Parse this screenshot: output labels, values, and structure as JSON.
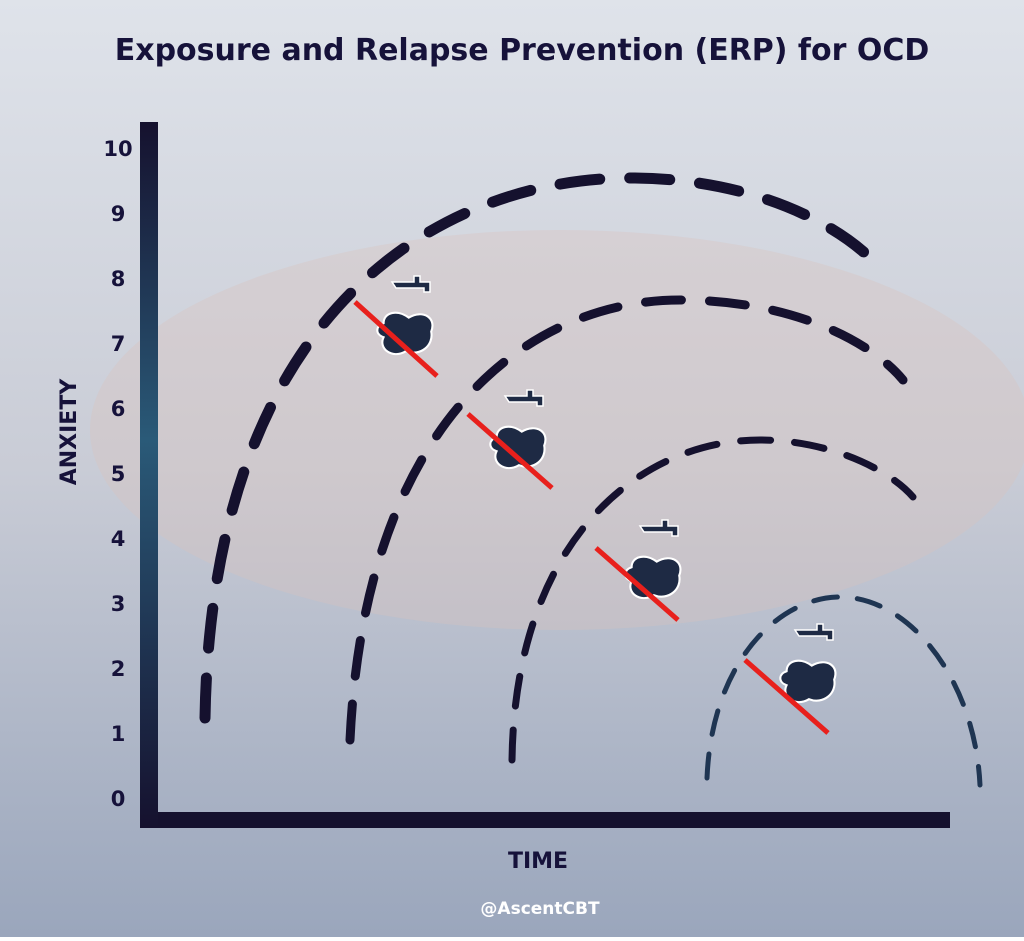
{
  "chart_data": {
    "type": "diagram",
    "title": "Exposure and Relapse Prevention (ERP) for OCD",
    "y_label": "ANXIETY",
    "x_label": "TIME",
    "ylim": [
      0,
      10
    ],
    "yticks": [
      0,
      1,
      2,
      3,
      4,
      5,
      6,
      7,
      8,
      9,
      10
    ],
    "credit": "@AscentCBT"
  }
}
